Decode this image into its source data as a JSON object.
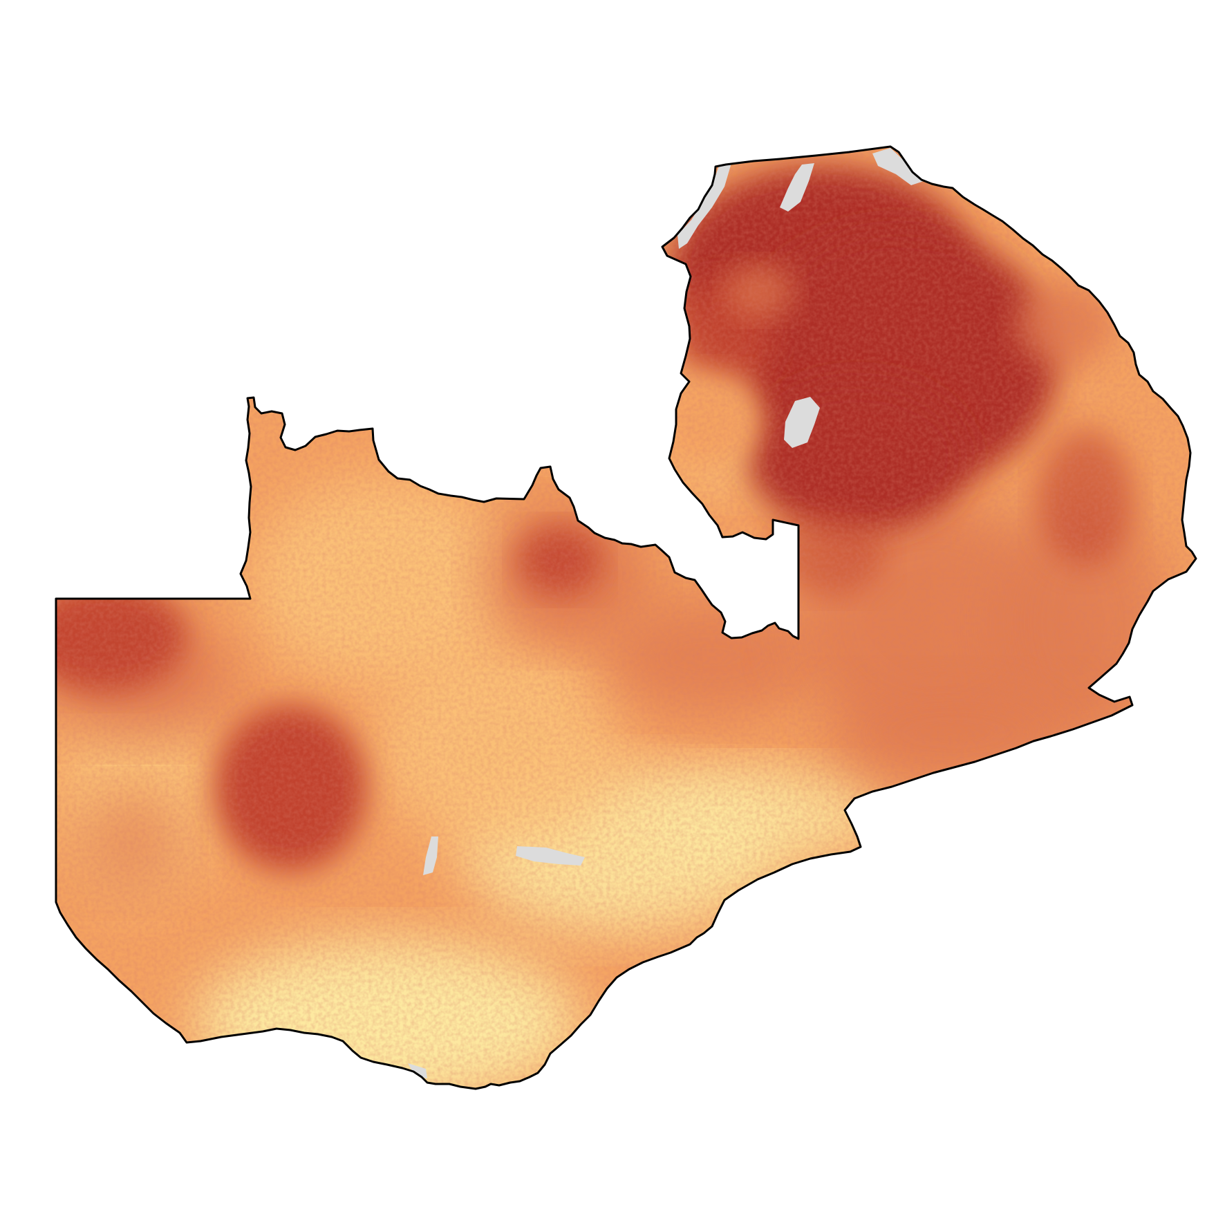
{
  "map": {
    "title": "",
    "legend": null,
    "palette": {
      "low": "#fde9a0",
      "low_mid": "#fcc57a",
      "mid": "#f4a261",
      "mid_high": "#e07a4f",
      "high": "#c1432f",
      "max": "#ad2f25",
      "no_data": "#dcdcdc",
      "border": "#000000",
      "background": "#ffffff"
    },
    "layers": [
      "raster-surface",
      "no-data-patches",
      "country-boundary"
    ]
  }
}
